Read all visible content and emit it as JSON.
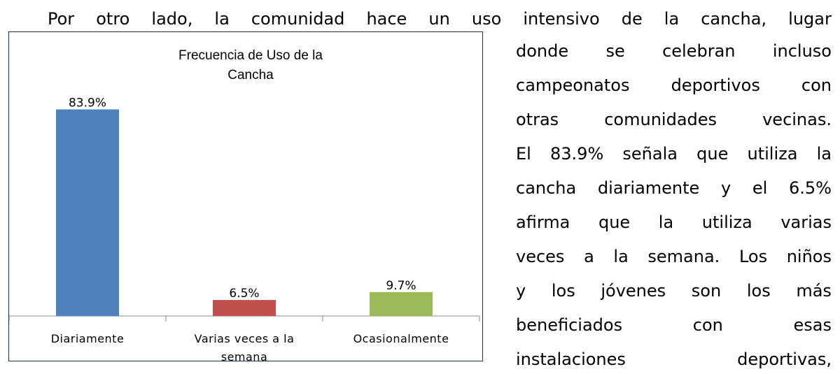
{
  "text_lines": [
    "Por otro lado, la comunidad hace un uso intensivo de la cancha, lugar",
    "donde se celebran incluso",
    "campeonatos deportivos con",
    "otras comunidades vecinas.",
    "El 83.9% señala que utiliza la",
    "cancha diariamente y el 6.5%",
    "afirma que la utiliza varias",
    "veces a la semana. Los niños",
    "y los jóvenes son los más",
    "beneficiados con esas",
    "instalaciones deportivas,"
  ],
  "chart_data": {
    "type": "bar",
    "title": "Frecuencia de Uso de la Cancha",
    "categories": [
      "Diariamente",
      "Varias veces a la semana",
      "Ocasionalmente"
    ],
    "values": [
      83.9,
      6.5,
      9.7
    ],
    "value_labels": [
      "83.9%",
      "6.5%",
      "9.7%"
    ],
    "colors": [
      "#4f81bd",
      "#c0504d",
      "#9bbb59"
    ],
    "ylim": [
      0,
      90
    ]
  }
}
